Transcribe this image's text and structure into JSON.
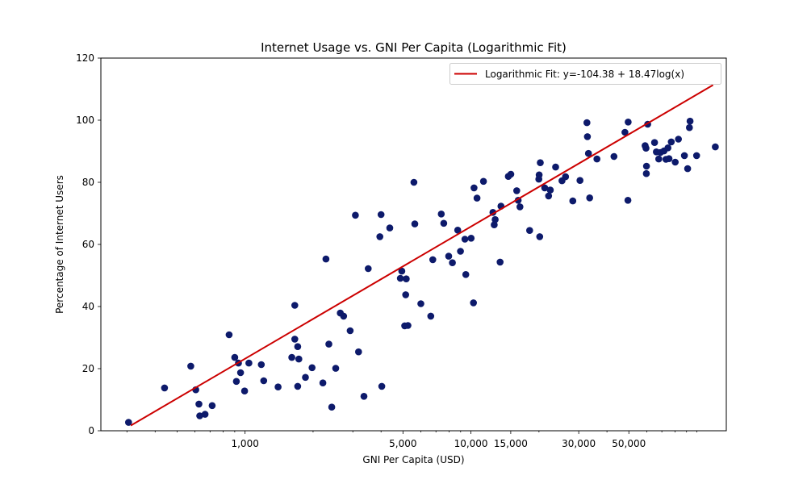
{
  "chart_data": {
    "type": "scatter",
    "title": "Internet Usage vs. GNI Per Capita (Logarithmic Fit)",
    "xlabel": "GNI Per Capita (USD)",
    "ylabel": "Percentage of Internet Users",
    "x_scale": "log",
    "xlim": [
      230,
      135000
    ],
    "ylim": [
      0,
      120
    ],
    "x_ticks": [
      1000,
      5000,
      10000,
      15000,
      30000,
      50000
    ],
    "x_tick_labels": [
      "1,000",
      "5,000",
      "10,000",
      "15,000",
      "30,000",
      "50,000"
    ],
    "y_ticks": [
      0,
      20,
      40,
      60,
      80,
      100,
      120
    ],
    "y_tick_labels": [
      "0",
      "20",
      "40",
      "60",
      "80",
      "100",
      "120"
    ],
    "grid": false,
    "legend_position": "top-right",
    "colors": {
      "points": "#0d1a6b",
      "fit_line": "#cc0000"
    },
    "series": [
      {
        "kind": "points",
        "points": [
          [
            305,
            2.7
          ],
          [
            440,
            13.8
          ],
          [
            575,
            20.8
          ],
          [
            605,
            13.2
          ],
          [
            625,
            8.6
          ],
          [
            630,
            4.8
          ],
          [
            665,
            5.3
          ],
          [
            715,
            8.1
          ],
          [
            850,
            30.9
          ],
          [
            900,
            23.6
          ],
          [
            915,
            15.9
          ],
          [
            935,
            21.8
          ],
          [
            955,
            18.7
          ],
          [
            995,
            12.8
          ],
          [
            1040,
            21.8
          ],
          [
            1180,
            21.3
          ],
          [
            1210,
            16.1
          ],
          [
            1400,
            14.1
          ],
          [
            1610,
            23.6
          ],
          [
            1660,
            29.5
          ],
          [
            1660,
            40.4
          ],
          [
            1710,
            14.3
          ],
          [
            1710,
            27.1
          ],
          [
            1730,
            23.1
          ],
          [
            1850,
            17.2
          ],
          [
            1980,
            20.3
          ],
          [
            2210,
            15.4
          ],
          [
            2280,
            55.3
          ],
          [
            2350,
            27.9
          ],
          [
            2420,
            7.6
          ],
          [
            2520,
            20.1
          ],
          [
            2640,
            37.9
          ],
          [
            2730,
            36.9
          ],
          [
            2920,
            32.2
          ],
          [
            3080,
            69.4
          ],
          [
            3180,
            25.4
          ],
          [
            3360,
            11.1
          ],
          [
            3510,
            52.2
          ],
          [
            3950,
            62.5
          ],
          [
            4000,
            69.6
          ],
          [
            4030,
            14.3
          ],
          [
            4370,
            65.3
          ],
          [
            4870,
            49.1
          ],
          [
            4940,
            51.4
          ],
          [
            5090,
            33.8
          ],
          [
            5140,
            43.8
          ],
          [
            5170,
            48.9
          ],
          [
            5260,
            33.9
          ],
          [
            5590,
            80.0
          ],
          [
            5640,
            66.6
          ],
          [
            6000,
            40.9
          ],
          [
            6640,
            36.9
          ],
          [
            6780,
            55.1
          ],
          [
            7390,
            69.8
          ],
          [
            7580,
            66.8
          ],
          [
            7970,
            56.2
          ],
          [
            8280,
            54.1
          ],
          [
            8740,
            64.6
          ],
          [
            8990,
            57.8
          ],
          [
            9400,
            61.7
          ],
          [
            9490,
            50.3
          ],
          [
            10020,
            62.0
          ],
          [
            10260,
            41.2
          ],
          [
            10320,
            78.2
          ],
          [
            10640,
            74.9
          ],
          [
            11360,
            80.3
          ],
          [
            12510,
            70.3
          ],
          [
            12670,
            66.3
          ],
          [
            12800,
            68.0
          ],
          [
            13460,
            54.3
          ],
          [
            13580,
            72.3
          ],
          [
            14640,
            81.9
          ],
          [
            15010,
            82.6
          ],
          [
            15940,
            77.3
          ],
          [
            16180,
            74.2
          ],
          [
            16480,
            72.1
          ],
          [
            18180,
            64.5
          ],
          [
            19970,
            81.0
          ],
          [
            20160,
            62.5
          ],
          [
            20040,
            82.4
          ],
          [
            20270,
            86.3
          ],
          [
            21210,
            78.2
          ],
          [
            22060,
            75.6
          ],
          [
            22440,
            77.5
          ],
          [
            23700,
            84.9
          ],
          [
            25300,
            80.5
          ],
          [
            26220,
            81.8
          ],
          [
            28230,
            74.0
          ],
          [
            30380,
            80.6
          ],
          [
            32610,
            99.2
          ],
          [
            32780,
            94.7
          ],
          [
            33130,
            89.3
          ],
          [
            33540,
            75.0
          ],
          [
            36110,
            87.5
          ],
          [
            42970,
            88.3
          ],
          [
            48060,
            96.1
          ],
          [
            49660,
            99.4
          ],
          [
            49540,
            74.2
          ],
          [
            59010,
            91.8
          ],
          [
            59530,
            91.0
          ],
          [
            59740,
            82.8
          ],
          [
            59860,
            85.2
          ],
          [
            60600,
            98.7
          ],
          [
            64950,
            92.8
          ],
          [
            66160,
            89.8
          ],
          [
            67790,
            87.5
          ],
          [
            69010,
            89.6
          ],
          [
            71540,
            90.1
          ],
          [
            72960,
            87.4
          ],
          [
            74480,
            91.1
          ],
          [
            75300,
            87.6
          ],
          [
            77040,
            93.0
          ],
          [
            80180,
            86.5
          ],
          [
            82870,
            93.9
          ],
          [
            88100,
            88.6
          ],
          [
            91020,
            84.4
          ],
          [
            92700,
            97.6
          ],
          [
            93320,
            99.7
          ],
          [
            99720,
            88.6
          ],
          [
            120700,
            91.4
          ]
        ]
      },
      {
        "name": "Logarithmic Fit: y=-104.38 + 18.47log(x)",
        "kind": "line",
        "intercept": -104.38,
        "slope": 18.47,
        "x_range": [
          312,
          118000
        ]
      }
    ]
  }
}
